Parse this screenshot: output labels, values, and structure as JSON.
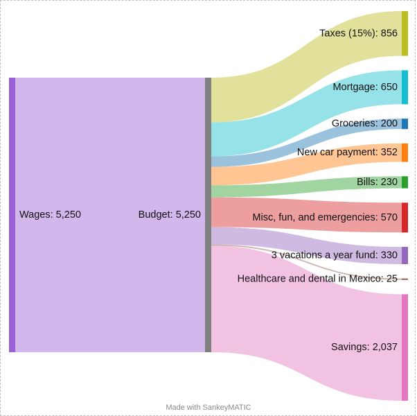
{
  "chart_data": {
    "type": "sankey",
    "unit": "",
    "nodes": [
      {
        "id": "wages",
        "label": "Wages",
        "value": 5250,
        "display": "5,250",
        "color": "#9b5fd6"
      },
      {
        "id": "budget",
        "label": "Budget",
        "value": 5250,
        "display": "5,250",
        "color": "#7f7f7f"
      },
      {
        "id": "taxes",
        "label": "Taxes (15%)",
        "value": 856,
        "display": "856",
        "color": "#bcbd22"
      },
      {
        "id": "mortgage",
        "label": "Mortgage",
        "value": 650,
        "display": "650",
        "color": "#17becf"
      },
      {
        "id": "groceries",
        "label": "Groceries",
        "value": 200,
        "display": "200",
        "color": "#1f77b4"
      },
      {
        "id": "car",
        "label": "New car payment",
        "value": 352,
        "display": "352",
        "color": "#ff7f0e"
      },
      {
        "id": "bills",
        "label": "Bills",
        "value": 230,
        "display": "230",
        "color": "#2ca02c"
      },
      {
        "id": "misc",
        "label": "Misc, fun, and emergencies",
        "value": 570,
        "display": "570",
        "color": "#d62728"
      },
      {
        "id": "vacations",
        "label": "3 vacations a year fund",
        "value": 330,
        "display": "330",
        "color": "#9467bd"
      },
      {
        "id": "health",
        "label": "Healthcare and dental in Mexico",
        "value": 25,
        "display": "25",
        "color": "#8c564b"
      },
      {
        "id": "savings",
        "label": "Savings",
        "value": 2037,
        "display": "2,037",
        "color": "#e377c2"
      }
    ],
    "links": [
      {
        "source": "wages",
        "target": "budget",
        "value": 5250
      },
      {
        "source": "budget",
        "target": "taxes",
        "value": 856
      },
      {
        "source": "budget",
        "target": "mortgage",
        "value": 650
      },
      {
        "source": "budget",
        "target": "groceries",
        "value": 200
      },
      {
        "source": "budget",
        "target": "car",
        "value": 352
      },
      {
        "source": "budget",
        "target": "bills",
        "value": 230
      },
      {
        "source": "budget",
        "target": "misc",
        "value": 570
      },
      {
        "source": "budget",
        "target": "vacations",
        "value": 330
      },
      {
        "source": "budget",
        "target": "health",
        "value": 25
      },
      {
        "source": "budget",
        "target": "savings",
        "value": 2037
      }
    ]
  },
  "credit": "Made with SankeyMATIC"
}
